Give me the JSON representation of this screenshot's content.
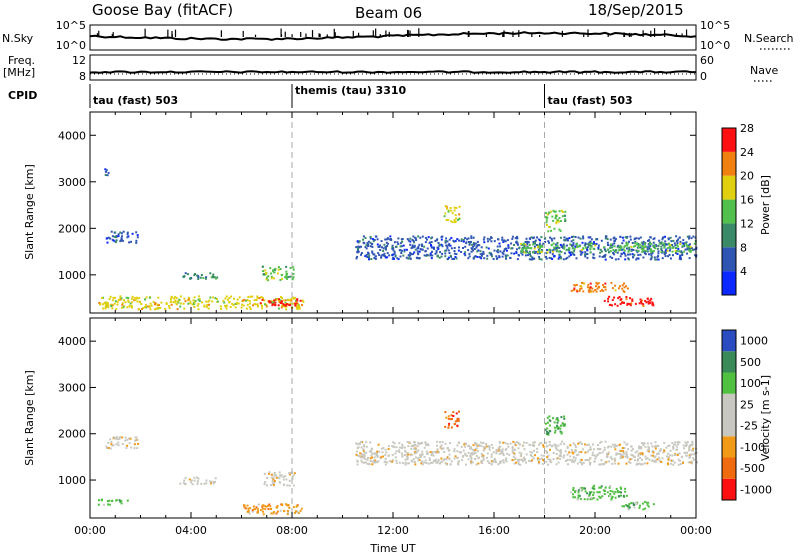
{
  "header": {
    "title": "Goose Bay (fitACF)",
    "beam": "Beam 06",
    "date": "18/Sep/2015"
  },
  "sky_panel": {
    "left_label": "N.Sky",
    "right_label": "N.Search",
    "left_ticks": [
      "10^5",
      "10^0"
    ],
    "right_ticks": [
      "10^5",
      "10^0"
    ]
  },
  "freq_panel": {
    "left_label_1": "Freq.",
    "left_label_2": "[MHz]",
    "left_ticks": [
      "12",
      "8"
    ],
    "right_label": "Nave",
    "right_ticks": [
      "60",
      "0"
    ]
  },
  "cpid": {
    "label": "CPID",
    "segments": [
      {
        "text": "tau (fast) 503",
        "start_h": 0
      },
      {
        "text": "themis (tau) 3310",
        "start_h": 8
      },
      {
        "text": "tau (fast) 503",
        "start_h": 18
      }
    ]
  },
  "chart_data": [
    {
      "type": "heatmap",
      "quantity": "Power",
      "ylabel": "Slant Range [km]",
      "colorbar_label": "Power [dB]",
      "colorbar_ticks": [
        "4",
        "8",
        "12",
        "16",
        "20",
        "24",
        "28"
      ],
      "colorbar_colors": [
        "#0a28ff",
        "#2f55b2",
        "#3a8a68",
        "#52c04c",
        "#e0d010",
        "#f08010",
        "#ff1010"
      ],
      "xlim_h": [
        0,
        24
      ],
      "ylim_km": [
        180,
        4500
      ],
      "yticks": [
        "1000",
        "2000",
        "3000",
        "4000"
      ],
      "echo_regions": [
        {
          "h": [
            0.6,
            1.9
          ],
          "km": [
            1700,
            1950
          ],
          "level": 1
        },
        {
          "h": [
            0.5,
            0.7
          ],
          "km": [
            3150,
            3300
          ],
          "level": 1
        },
        {
          "h": [
            3.5,
            5.0
          ],
          "km": [
            930,
            1080
          ],
          "level": 2
        },
        {
          "h": [
            6.8,
            8.1
          ],
          "km": [
            900,
            1200
          ],
          "level": 3
        },
        {
          "h": [
            0.3,
            8.5
          ],
          "km": [
            280,
            560
          ],
          "level": 4
        },
        {
          "h": [
            6.7,
            8.5
          ],
          "km": [
            350,
            500
          ],
          "level": 6
        },
        {
          "h": [
            10.5,
            24.0
          ],
          "km": [
            1350,
            1850
          ],
          "level": 1
        },
        {
          "h": [
            17.0,
            24.0
          ],
          "km": [
            1500,
            1700
          ],
          "level": 3
        },
        {
          "h": [
            14.0,
            14.6
          ],
          "km": [
            2150,
            2500
          ],
          "level": 4
        },
        {
          "h": [
            18.0,
            18.8
          ],
          "km": [
            1950,
            2400
          ],
          "level": 3
        },
        {
          "h": [
            19.0,
            21.3
          ],
          "km": [
            650,
            850
          ],
          "level": 5
        },
        {
          "h": [
            20.3,
            22.3
          ],
          "km": [
            350,
            550
          ],
          "level": 6
        }
      ]
    },
    {
      "type": "heatmap",
      "quantity": "Velocity",
      "ylabel": "Slant Range [km]",
      "colorbar_label": "Velocity [m s-1]",
      "colorbar_ticks": [
        "-1000",
        "-500",
        "-100",
        "-25",
        "25",
        "100",
        "500",
        "1000"
      ],
      "colorbar_colors": [
        "#ff1010",
        "#f06a10",
        "#f09a18",
        "#c8c8c0",
        "#c8c8c0",
        "#50c040",
        "#3a8a5a",
        "#2a4cc0"
      ],
      "xlabel": "Time UT",
      "xticks": [
        "00:00",
        "04:00",
        "08:00",
        "12:00",
        "16:00",
        "20:00",
        "00:00"
      ],
      "xlim_h": [
        0,
        24
      ],
      "ylim_km": [
        180,
        4500
      ],
      "yticks": [
        "1000",
        "2000",
        "3000",
        "4000"
      ],
      "echo_regions": [
        {
          "h": [
            0.6,
            1.9
          ],
          "km": [
            1700,
            1950
          ],
          "level": 3
        },
        {
          "h": [
            0.3,
            1.5
          ],
          "km": [
            480,
            600
          ],
          "level": 5
        },
        {
          "h": [
            3.5,
            5.0
          ],
          "km": [
            930,
            1080
          ],
          "level": 3
        },
        {
          "h": [
            6.8,
            8.1
          ],
          "km": [
            900,
            1200
          ],
          "level": 3
        },
        {
          "h": [
            6.0,
            8.5
          ],
          "km": [
            280,
            500
          ],
          "level": 2
        },
        {
          "h": [
            10.5,
            24.0
          ],
          "km": [
            1350,
            1850
          ],
          "level": 3
        },
        {
          "h": [
            14.0,
            14.6
          ],
          "km": [
            2150,
            2500
          ],
          "level": 1
        },
        {
          "h": [
            18.0,
            18.8
          ],
          "km": [
            1950,
            2400
          ],
          "level": 5
        },
        {
          "h": [
            19.0,
            21.3
          ],
          "km": [
            600,
            900
          ],
          "level": 5
        },
        {
          "h": [
            21.0,
            22.3
          ],
          "km": [
            380,
            550
          ],
          "level": 5
        }
      ]
    }
  ]
}
